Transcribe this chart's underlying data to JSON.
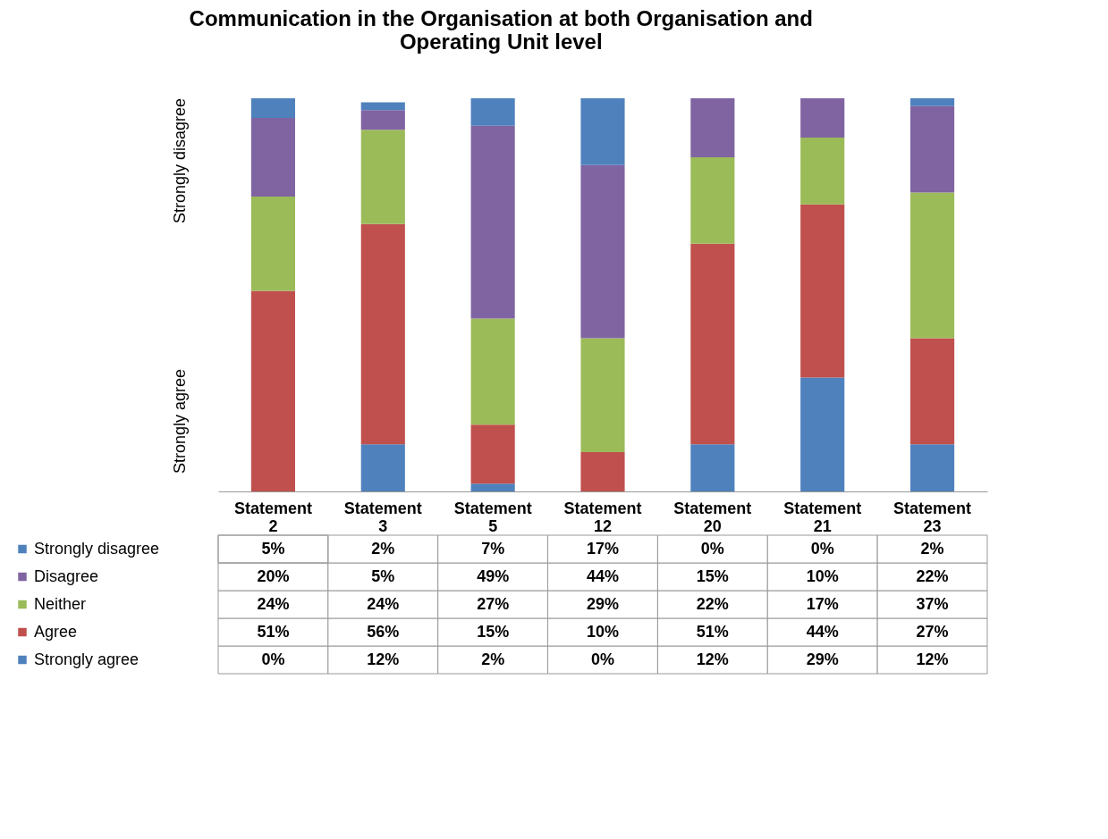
{
  "chart_data": {
    "type": "bar",
    "title": "Communication in the Organisation at both Organisation and Operating Unit level",
    "stacked": true,
    "ylim": [
      0,
      100
    ],
    "tick_labels": "x",
    "legend": "bottom left",
    "annotations": [
      "Strongly agree",
      "Strongly disagree"
    ],
    "categories": [
      "Statement 2",
      "Statement 3",
      "Statement 5",
      "Statement 12",
      "Statement 20",
      "Statement 21",
      "Statement 23"
    ],
    "series": [
      {
        "name": "Strongly agree",
        "color": "#4f81bd",
        "values": [
          0,
          12,
          2,
          0,
          12,
          29,
          12
        ],
        "value_labels": [
          "0%",
          "12%",
          "2%",
          "0%",
          "12%",
          "29%",
          "12%"
        ]
      },
      {
        "name": "Agree",
        "color": "#c0504d",
        "values": [
          51,
          56,
          15,
          10,
          51,
          44,
          27
        ],
        "value_labels": [
          "51%",
          "56%",
          "15%",
          "10%",
          "51%",
          "44%",
          "27%"
        ]
      },
      {
        "name": "Neither",
        "color": "#9bbb59",
        "values": [
          24,
          24,
          27,
          29,
          22,
          17,
          37
        ],
        "value_labels": [
          "24%",
          "24%",
          "27%",
          "29%",
          "22%",
          "17%",
          "37%"
        ]
      },
      {
        "name": "Disagree",
        "color": "#8064a2",
        "values": [
          20,
          5,
          49,
          44,
          15,
          10,
          22
        ],
        "value_labels": [
          "20%",
          "5%",
          "49%",
          "44%",
          "15%",
          "10%",
          "22%"
        ]
      },
      {
        "name": "Strongly disagree",
        "color": "#4f81bd",
        "values": [
          5,
          2,
          7,
          17,
          0,
          0,
          2
        ],
        "value_labels": [
          "5%",
          "2%",
          "7%",
          "17%",
          "0%",
          "0%",
          "2%"
        ]
      }
    ]
  }
}
